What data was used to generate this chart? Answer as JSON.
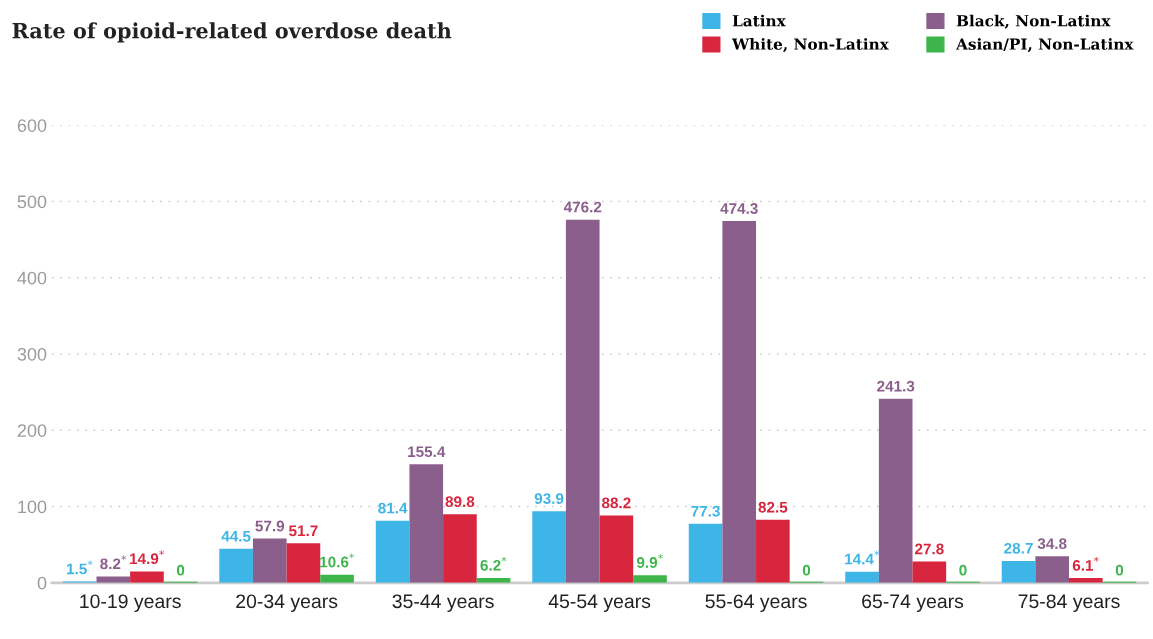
{
  "chart_data": {
    "type": "bar",
    "title": "Rate of opioid-related overdose death",
    "categories": [
      "10-19 years",
      "20-34 years",
      "35-44 years",
      "45-54 years",
      "55-64 years",
      "65-74 years",
      "75-84 years"
    ],
    "series": [
      {
        "name": "Latinx",
        "color": "#3db5e6",
        "values": [
          1.5,
          44.5,
          81.4,
          93.9,
          77.3,
          14.4,
          28.7
        ],
        "value_labels": [
          "1.5$^{*}$",
          "44.5",
          "81.4",
          "93.9",
          "77.3",
          "14.4$^{*}$",
          "28.7"
        ]
      },
      {
        "name": "Black, Non-Latinx",
        "color": "#8b5f8c",
        "values": [
          8.2,
          57.9,
          155.4,
          476.2,
          474.3,
          241.3,
          34.8
        ],
        "value_labels": [
          "8.2$^{*}$",
          "57.9",
          "155.4",
          "476.2",
          "474.3",
          "241.3",
          "34.8"
        ]
      },
      {
        "name": "White, Non-Latinx",
        "color": "#d7263d",
        "values": [
          14.9,
          51.7,
          89.8,
          88.2,
          82.5,
          27.8,
          6.1
        ],
        "value_labels": [
          "14.9$^{*}$",
          "51.7",
          "89.8",
          "88.2",
          "82.5",
          "27.8",
          "6.1$^{*}$"
        ]
      },
      {
        "name": "Asian/PI, Non-Latinx",
        "color": "#3db54a",
        "values": [
          0,
          10.6,
          6.2,
          9.9,
          0,
          0,
          0
        ],
        "value_labels": [
          "0",
          "10.6$^{*}$",
          "6.2$^{*}$",
          "9.9$^{*}$",
          "0",
          "0",
          "0"
        ]
      }
    ],
    "ylim": [
      0,
      600
    ],
    "yticks": [
      0,
      100,
      200,
      300,
      400,
      500,
      600
    ],
    "grid": "y",
    "legend": "top right"
  }
}
